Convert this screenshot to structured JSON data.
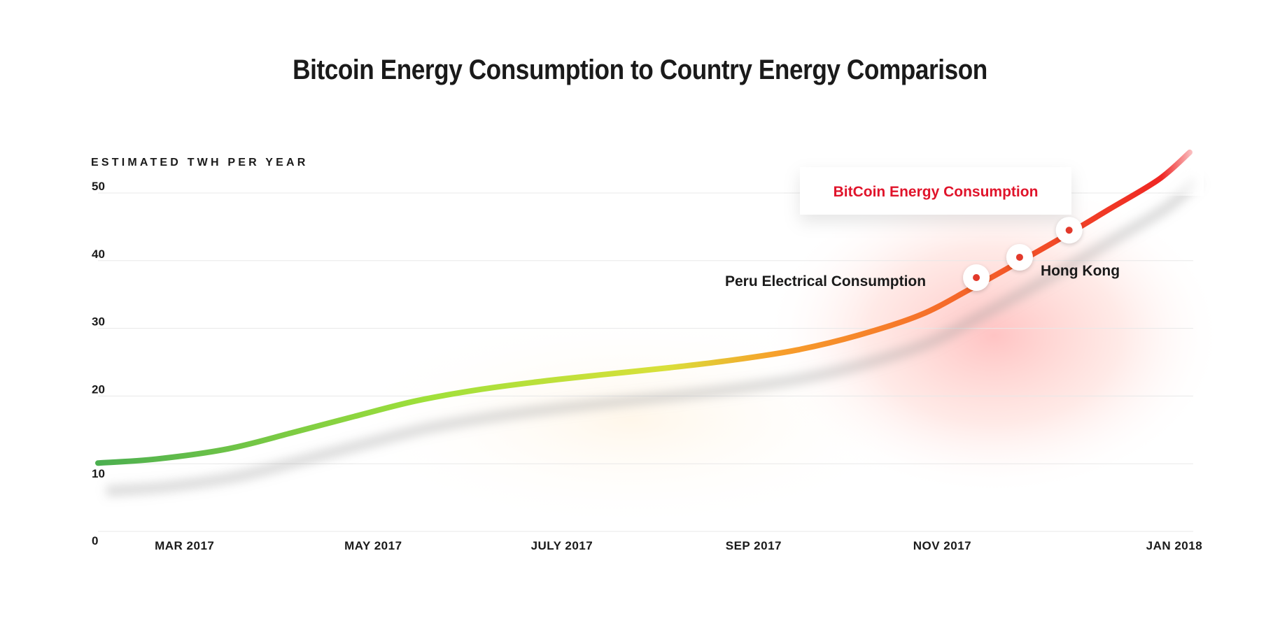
{
  "chart_data": {
    "type": "line",
    "title": "Bitcoin Energy Consumption to Country Energy Comparison",
    "ylabel": "ESTIMATED TWH PER YEAR",
    "xlabel": "",
    "ylim": [
      0,
      50
    ],
    "yticks": [
      0,
      10,
      20,
      30,
      40,
      50
    ],
    "ytick_labels": [
      "0",
      "10",
      "20",
      "30",
      "40",
      "50"
    ],
    "xlim": [
      "2017-02-01",
      "2018-01-20"
    ],
    "xticks": [
      {
        "date": "2017-03-01",
        "label": "MAR 2017"
      },
      {
        "date": "2017-05-01",
        "label": "MAY 2017"
      },
      {
        "date": "2017-07-01",
        "label": "JULY 2017"
      },
      {
        "date": "2017-09-01",
        "label": "SEP 2017"
      },
      {
        "date": "2017-11-01",
        "label": "NOV 2017"
      },
      {
        "date": "2018-01-15",
        "label": "JAN 2018"
      }
    ],
    "grid": true,
    "series": [
      {
        "name": "BitCoin Energy Consumption",
        "x": [
          "2017-02-01",
          "2017-02-20",
          "2017-03-15",
          "2017-04-05",
          "2017-04-25",
          "2017-05-15",
          "2017-06-05",
          "2017-06-25",
          "2017-07-15",
          "2017-08-05",
          "2017-08-25",
          "2017-09-15",
          "2017-10-05",
          "2017-10-25",
          "2017-11-10",
          "2017-11-25",
          "2017-12-10",
          "2017-12-25",
          "2018-01-10",
          "2018-01-20"
        ],
        "values": [
          10.1,
          10.7,
          12.2,
          14.6,
          17.0,
          19.3,
          21.0,
          22.2,
          23.2,
          24.2,
          25.3,
          26.8,
          29.0,
          32.0,
          35.8,
          39.6,
          43.5,
          47.6,
          52.0,
          56.0
        ]
      }
    ],
    "points": [
      {
        "date": "2017-11-12",
        "value": 37.5
      },
      {
        "date": "2017-11-26",
        "value": 40.5
      },
      {
        "date": "2017-12-12",
        "value": 44.5
      }
    ],
    "annotations": [
      {
        "text": "Peru Electrical Consumption",
        "date": "2017-11-12",
        "value": 37.5
      },
      {
        "text": "Hong Kong",
        "date": "2017-11-26",
        "value": 40.5
      }
    ],
    "legend": {
      "label": "BitCoin Energy Consumption",
      "color": "#e0142b",
      "placement": "top-right"
    },
    "colors": {
      "line_start": "#4caf50",
      "line_mid": "#9fe03a",
      "line_orange": "#f7a02b",
      "line_end": "#ee1e23",
      "grid": "#e8e8e8",
      "glow": "#ff5a5a"
    }
  }
}
